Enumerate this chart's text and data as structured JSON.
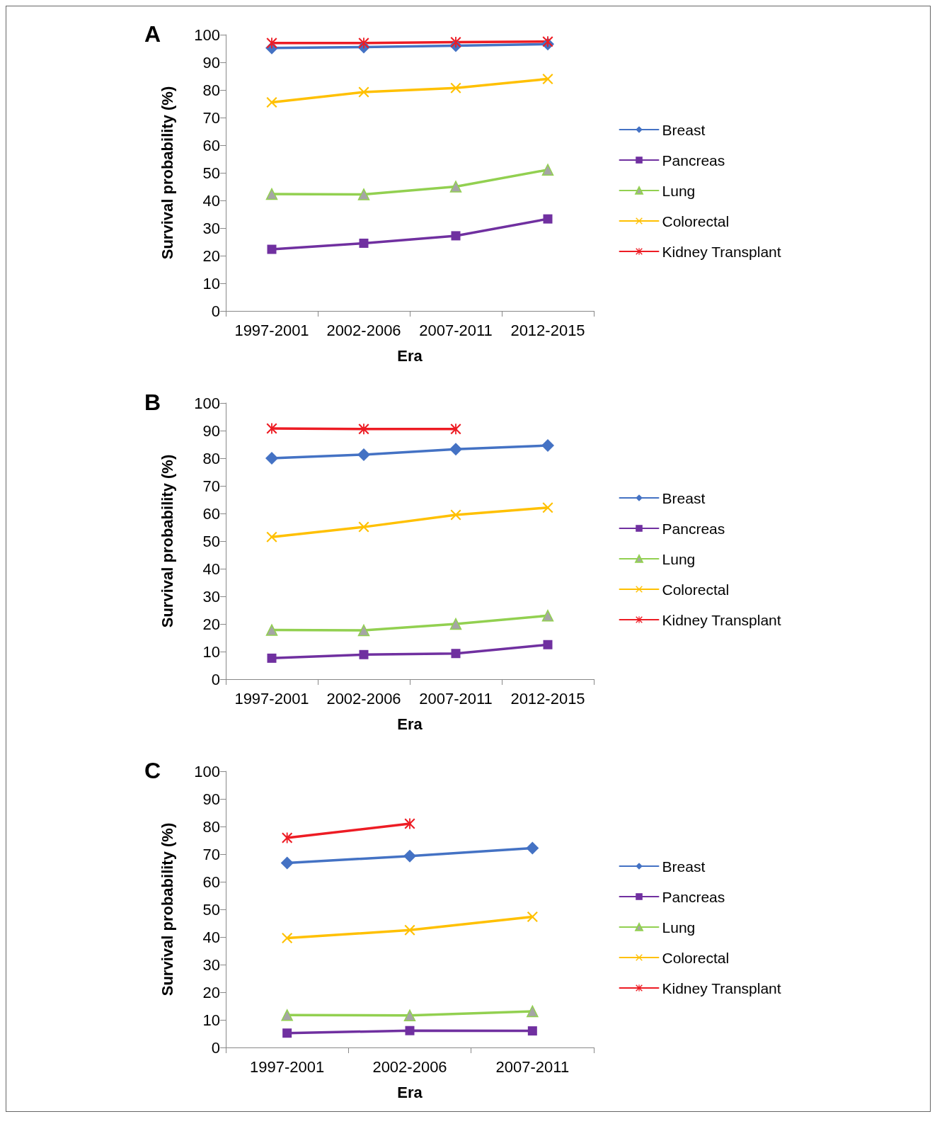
{
  "chart_data": [
    {
      "type": "line",
      "title": "A",
      "xlabel": "Era",
      "ylabel": "Survival probability (%)",
      "categories": [
        "1997-2001",
        "2002-2006",
        "2007-2011",
        "2012-2015"
      ],
      "ylim": [
        0,
        100
      ],
      "yticks": [
        0,
        10,
        20,
        30,
        40,
        50,
        60,
        70,
        80,
        90,
        100
      ],
      "grid": false,
      "legend": "right",
      "series": [
        {
          "name": "Breast",
          "color": "#4472c4",
          "marker": "diamond",
          "values": [
            95.2,
            95.5,
            96,
            96.6
          ]
        },
        {
          "name": "Pancreas",
          "color": "#7030a0",
          "marker": "square",
          "values": [
            22.3,
            24.5,
            27.2,
            33.3
          ]
        },
        {
          "name": "Lung",
          "color": "#92d050",
          "marker": "triangle",
          "values": [
            42.3,
            42.2,
            45,
            51.1
          ]
        },
        {
          "name": "Colorectal",
          "color": "#ffc000",
          "marker": "cross",
          "values": [
            75.5,
            79.2,
            80.7,
            84
          ]
        },
        {
          "name": "Kidney Transplant",
          "color": "#ed1c24",
          "marker": "star",
          "values": [
            97,
            97,
            97.3,
            97.5
          ]
        }
      ]
    },
    {
      "type": "line",
      "title": "B",
      "xlabel": "Era",
      "ylabel": "Survival probability (%)",
      "categories": [
        "1997-2001",
        "2002-2006",
        "2007-2011",
        "2012-2015"
      ],
      "ylim": [
        0,
        100
      ],
      "yticks": [
        0,
        10,
        20,
        30,
        40,
        50,
        60,
        70,
        80,
        90,
        100
      ],
      "grid": false,
      "legend": "right",
      "series": [
        {
          "name": "Breast",
          "color": "#4472c4",
          "marker": "diamond",
          "values": [
            80,
            81.3,
            83.3,
            84.6
          ]
        },
        {
          "name": "Pancreas",
          "color": "#7030a0",
          "marker": "square",
          "values": [
            7.6,
            8.9,
            9.3,
            12.5
          ]
        },
        {
          "name": "Lung",
          "color": "#92d050",
          "marker": "triangle",
          "values": [
            17.8,
            17.7,
            20,
            23
          ]
        },
        {
          "name": "Colorectal",
          "color": "#ffc000",
          "marker": "cross",
          "values": [
            51.5,
            55.1,
            59.5,
            62.1
          ]
        },
        {
          "name": "Kidney Transplant",
          "color": "#ed1c24",
          "marker": "star",
          "values": [
            90.8,
            90.6,
            90.6,
            null
          ]
        }
      ]
    },
    {
      "type": "line",
      "title": "C",
      "xlabel": "Era",
      "ylabel": "Survival probability (%)",
      "categories": [
        "1997-2001",
        "2002-2006",
        "2007-2011"
      ],
      "ylim": [
        0,
        100
      ],
      "yticks": [
        0,
        10,
        20,
        30,
        40,
        50,
        60,
        70,
        80,
        90,
        100
      ],
      "grid": false,
      "legend": "right",
      "series": [
        {
          "name": "Breast",
          "color": "#4472c4",
          "marker": "diamond",
          "values": [
            66.8,
            69.3,
            72.2
          ]
        },
        {
          "name": "Pancreas",
          "color": "#7030a0",
          "marker": "square",
          "values": [
            5.2,
            6.1,
            6
          ]
        },
        {
          "name": "Lung",
          "color": "#92d050",
          "marker": "triangle",
          "values": [
            11.7,
            11.6,
            13.1
          ]
        },
        {
          "name": "Colorectal",
          "color": "#ffc000",
          "marker": "cross",
          "values": [
            39.6,
            42.5,
            47.3
          ]
        },
        {
          "name": "Kidney Transplant",
          "color": "#ed1c24",
          "marker": "star",
          "values": [
            75.9,
            81,
            null
          ]
        }
      ]
    }
  ]
}
